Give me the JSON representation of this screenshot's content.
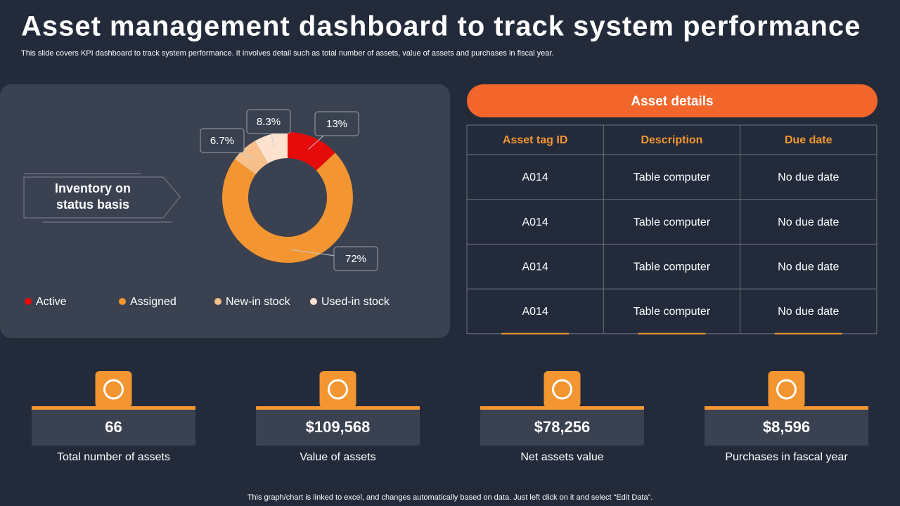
{
  "header": {
    "title": "Asset management dashboard to track system performance",
    "subtitle": "This slide covers KPI dashboard to track system performance. It involves detail such as total number of assets, value of assets and purchases in fiscal year."
  },
  "chart_data": {
    "type": "donut",
    "title_lines": [
      "Inventory on",
      "status basis"
    ],
    "categories": [
      "Active",
      "Assigned",
      "New-in stock",
      "Used-in stock"
    ],
    "values": [
      13,
      72,
      6.7,
      8.3
    ],
    "value_labels": [
      "13%",
      "72%",
      "6.7%",
      "8.3%"
    ],
    "colors": [
      "#e50b0b",
      "#f39530",
      "#f7c08a",
      "#fde3cf"
    ]
  },
  "table": {
    "title": "Asset details",
    "columns": [
      "Asset tag ID",
      "Description",
      "Due date"
    ],
    "rows": [
      [
        "A014",
        "Table computer",
        "No due date"
      ],
      [
        "A014",
        "Table computer",
        "No due date"
      ],
      [
        "A014",
        "Table computer",
        "No due date"
      ],
      [
        "A014",
        "Table computer",
        "No due date"
      ]
    ]
  },
  "kpis": [
    {
      "value": "66",
      "label": "Total number of assets"
    },
    {
      "value": "$109,568",
      "label": "Value of assets"
    },
    {
      "value": "$78,256",
      "label": "Net assets value"
    },
    {
      "value": "$8,596",
      "label": "Purchases in fascal year"
    }
  ],
  "footer": "This graph/chart is linked to excel, and changes automatically based on data. Just left click on it and select “Edit Data”."
}
